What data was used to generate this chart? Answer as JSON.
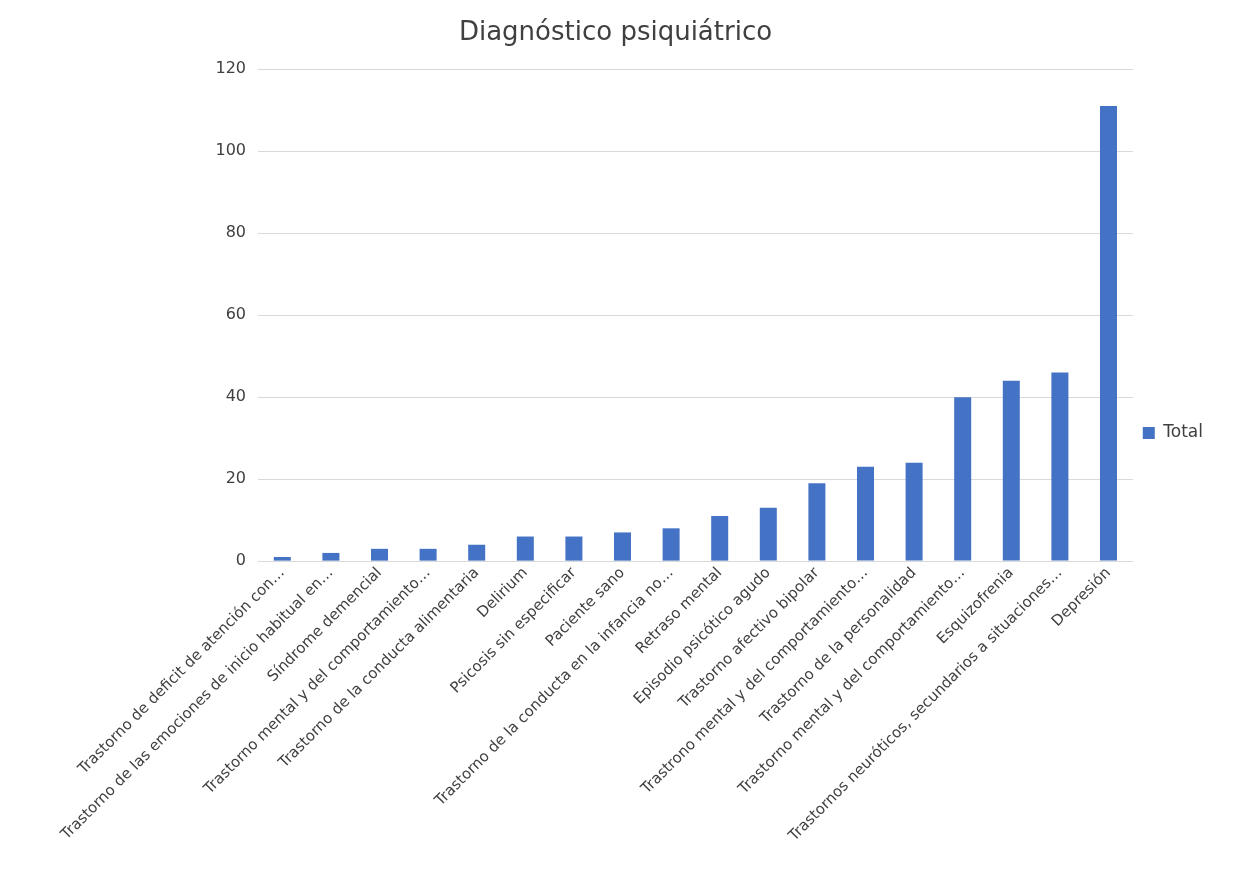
{
  "chart_data": {
    "type": "bar",
    "title": "Diagnóstico psiquiátrico",
    "categories": [
      "Trastorno de deficit de atención con…",
      "Trastorno de las emociones de inicio habitual en…",
      "Síndrome demencial",
      "Trastorno mental y del comportamiento…",
      "Trastorno de la conducta alimentaria",
      "Delirium",
      "Psicosis sin especificar",
      "Paciente sano",
      "Trastorno de la conducta en la infancia no…",
      "Retraso mental",
      "Episodio psicótico agudo",
      "Trastorno afectivo bipolar",
      "Trastrono mental y del comportamiento…",
      "Trastorno de la personalidad",
      "Trastorno mental y del comportamiento…",
      "Esquizofrenia",
      "Trastornos neuróticos, secundarios a situaciones…",
      "Depresión"
    ],
    "series": [
      {
        "name": "Total",
        "color": "#4472c4",
        "values": [
          1,
          2,
          3,
          3,
          4,
          6,
          6,
          7,
          8,
          11,
          13,
          19,
          23,
          24,
          40,
          44,
          46,
          111
        ]
      }
    ],
    "ylim": [
      0,
      120
    ],
    "yticks": [
      0,
      20,
      40,
      60,
      80,
      100,
      120
    ],
    "grid": "y",
    "legend": "right"
  }
}
